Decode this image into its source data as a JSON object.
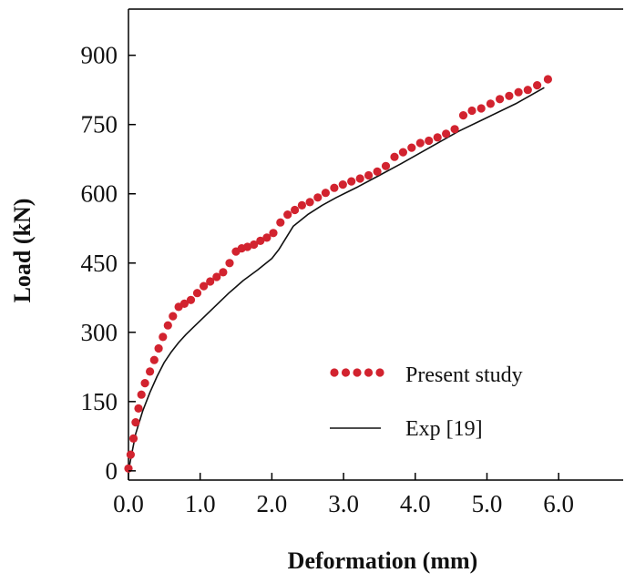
{
  "chart_data": {
    "type": "line",
    "title": "",
    "xlabel": "Deformation (mm)",
    "ylabel": "Load (kN)",
    "xlim": [
      0,
      6.9
    ],
    "ylim": [
      -20,
      1000
    ],
    "x_ticks": [
      0,
      1,
      2,
      3,
      4,
      5,
      6
    ],
    "x_tick_labels": [
      "0.0",
      "1.0",
      "2.0",
      "3.0",
      "4.0",
      "5.0",
      "6.0"
    ],
    "y_ticks": [
      0,
      150,
      300,
      450,
      600,
      750,
      900
    ],
    "y_tick_labels": [
      "0",
      "150",
      "300",
      "450",
      "600",
      "750",
      "900"
    ],
    "grid": false,
    "legend_position": "bottom-right",
    "series": [
      {
        "name": "Present study",
        "style": "dotted",
        "color": "#d2232f",
        "x": [
          0.0,
          0.03,
          0.07,
          0.1,
          0.14,
          0.18,
          0.23,
          0.3,
          0.36,
          0.42,
          0.48,
          0.55,
          0.62,
          0.7,
          0.78,
          0.87,
          0.96,
          1.05,
          1.14,
          1.23,
          1.32,
          1.41,
          1.5,
          1.58,
          1.66,
          1.75,
          1.84,
          1.93,
          2.02,
          2.12,
          2.22,
          2.32,
          2.42,
          2.53,
          2.64,
          2.75,
          2.87,
          2.99,
          3.11,
          3.23,
          3.35,
          3.47,
          3.59,
          3.71,
          3.83,
          3.95,
          4.07,
          4.19,
          4.31,
          4.43,
          4.55,
          4.67,
          4.79,
          4.92,
          5.05,
          5.18,
          5.31,
          5.44,
          5.57,
          5.7,
          5.85
        ],
        "y": [
          5,
          35,
          70,
          105,
          135,
          165,
          190,
          215,
          240,
          265,
          290,
          315,
          335,
          355,
          362,
          370,
          385,
          400,
          410,
          420,
          430,
          450,
          475,
          482,
          485,
          490,
          498,
          505,
          515,
          538,
          555,
          565,
          575,
          582,
          592,
          602,
          613,
          620,
          627,
          633,
          640,
          648,
          660,
          680,
          690,
          700,
          710,
          715,
          722,
          730,
          740,
          770,
          780,
          785,
          795,
          805,
          812,
          820,
          825,
          835,
          848
        ]
      },
      {
        "name": "Exp [19]",
        "style": "solid",
        "color": "#111111",
        "x": [
          0.0,
          0.05,
          0.1,
          0.2,
          0.3,
          0.4,
          0.5,
          0.6,
          0.7,
          0.8,
          0.9,
          1.0,
          1.2,
          1.4,
          1.6,
          1.8,
          2.0,
          2.1,
          2.2,
          2.3,
          2.5,
          2.7,
          2.9,
          3.2,
          3.5,
          3.8,
          4.2,
          4.6,
          5.0,
          5.4,
          5.8
        ],
        "y": [
          0,
          40,
          80,
          130,
          170,
          205,
          235,
          258,
          278,
          295,
          310,
          325,
          355,
          385,
          412,
          435,
          460,
          480,
          505,
          530,
          555,
          575,
          592,
          615,
          640,
          665,
          700,
          735,
          765,
          795,
          830
        ]
      }
    ]
  }
}
